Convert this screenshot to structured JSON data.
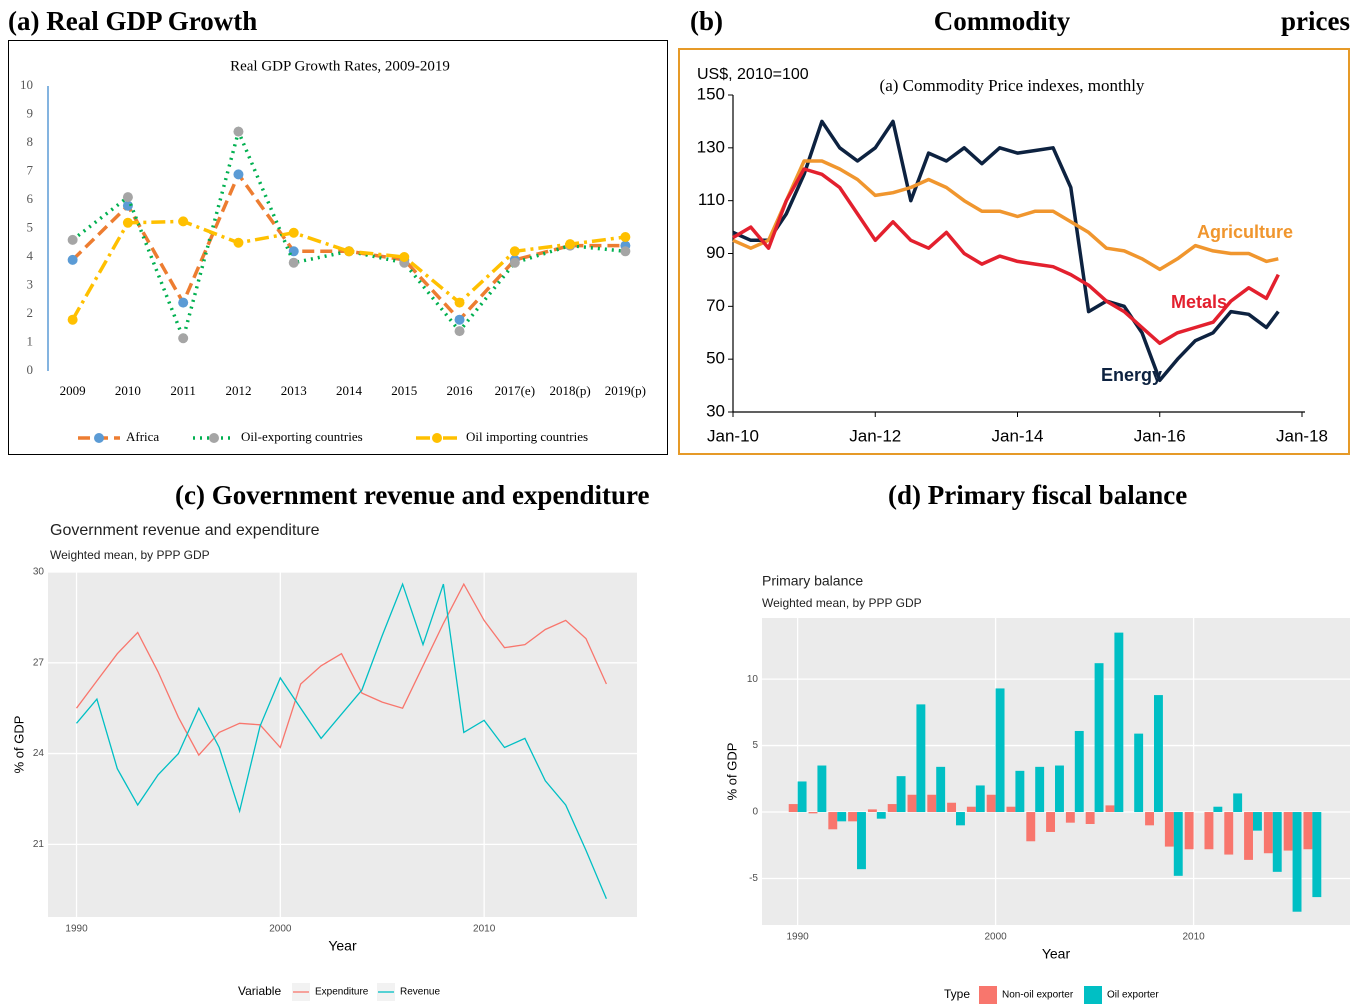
{
  "headings": [
    "(a) Real GDP Growth",
    "(b) Commodity prices",
    "(c) Government revenue and expenditure",
    "(d) Primary fiscal balance"
  ],
  "chart_data": [
    {
      "type": "line",
      "title": "Real GDP Growth Rates, 2009-2019",
      "categories": [
        "2009",
        "2010",
        "2011",
        "2012",
        "2013",
        "2014",
        "2015",
        "2016",
        "2017(e)",
        "2018(p)",
        "2019(p)"
      ],
      "ylim": [
        0,
        10
      ],
      "yticks": [
        0,
        1,
        2,
        3,
        4,
        5,
        6,
        7,
        8,
        9,
        10
      ],
      "grid": false,
      "legend": "bottom",
      "series": [
        {
          "name": "Africa",
          "color": "#ed7d31",
          "marker_color": "#5b9bd5",
          "line_style": "dashed",
          "values": [
            3.9,
            5.8,
            2.4,
            6.9,
            4.2,
            4.2,
            3.9,
            1.8,
            3.9,
            4.4,
            4.4
          ]
        },
        {
          "name": "Oil-exporting countries",
          "color": "#00b050",
          "marker_color": "#a5a5a5",
          "line_style": "dotted",
          "values": [
            4.6,
            6.1,
            1.15,
            8.4,
            3.8,
            4.2,
            3.8,
            1.4,
            3.8,
            4.4,
            4.2
          ]
        },
        {
          "name": "Oil importing countries",
          "color": "#ffc000",
          "marker_color": "#ffc000",
          "line_style": "dashdot",
          "values": [
            1.8,
            5.2,
            5.25,
            4.5,
            4.85,
            4.2,
            4.0,
            2.4,
            4.2,
            4.45,
            4.7
          ]
        }
      ]
    },
    {
      "type": "line",
      "title": "(a) Commodity Price indexes, monthly",
      "y_label": "US$, 2010=100",
      "x": [
        "2010-01",
        "2010-04",
        "2010-07",
        "2010-10",
        "2011-01",
        "2011-04",
        "2011-07",
        "2011-10",
        "2012-01",
        "2012-04",
        "2012-07",
        "2012-10",
        "2013-01",
        "2013-04",
        "2013-07",
        "2013-10",
        "2014-01",
        "2014-04",
        "2014-07",
        "2014-10",
        "2015-01",
        "2015-04",
        "2015-07",
        "2015-10",
        "2016-01",
        "2016-04",
        "2016-07",
        "2016-10",
        "2017-01",
        "2017-04",
        "2017-07",
        "2017-09"
      ],
      "xlim": [
        "2010-01",
        "2018-01"
      ],
      "xticks": [
        {
          "value": "2010-01",
          "label": "Jan-10"
        },
        {
          "value": "2012-01",
          "label": "Jan-12"
        },
        {
          "value": "2014-01",
          "label": "Jan-14"
        },
        {
          "value": "2016-01",
          "label": "Jan-16"
        },
        {
          "value": "2018-01",
          "label": "Jan-18"
        }
      ],
      "ylim": [
        30,
        150
      ],
      "yticks": [
        30,
        50,
        70,
        90,
        110,
        130,
        150
      ],
      "grid": false,
      "series": [
        {
          "name": "Energy",
          "color": "#0d2240",
          "values": [
            98,
            95,
            95,
            105,
            120,
            140,
            130,
            125,
            130,
            140,
            110,
            128,
            125,
            130,
            124,
            130,
            128,
            129,
            130,
            115,
            68,
            72,
            70,
            60,
            42,
            50,
            57,
            60,
            68,
            67,
            62,
            68
          ]
        },
        {
          "name": "Agriculture",
          "color": "#f0962e",
          "values": [
            95,
            92,
            95,
            110,
            125,
            125,
            122,
            118,
            112,
            113,
            115,
            118,
            115,
            110,
            106,
            106,
            104,
            106,
            106,
            102,
            98,
            92,
            91,
            88,
            84,
            88,
            93,
            91,
            90,
            90,
            87,
            88
          ]
        },
        {
          "name": "Metals",
          "color": "#e3202e",
          "values": [
            96,
            100,
            92,
            110,
            122,
            120,
            115,
            105,
            95,
            102,
            95,
            92,
            98,
            90,
            86,
            89,
            87,
            86,
            85,
            82,
            78,
            72,
            68,
            62,
            56,
            60,
            62,
            64,
            72,
            77,
            73,
            82
          ]
        }
      ]
    },
    {
      "type": "line",
      "title": "Government revenue and expenditure",
      "subtitle": "Weighted mean, by PPP GDP",
      "x_label": "Year",
      "y_label": "% of GDP",
      "legend_title": "Variable",
      "legend": "bottom",
      "x": [
        1990,
        1991,
        1992,
        1993,
        1994,
        1995,
        1996,
        1997,
        1998,
        1999,
        2000,
        2001,
        2002,
        2003,
        2004,
        2005,
        2006,
        2007,
        2008,
        2009,
        2010,
        2011,
        2012,
        2013,
        2014,
        2015,
        2016
      ],
      "xlim": [
        1988.6,
        2017.5
      ],
      "xticks": [
        1990,
        2000,
        2010
      ],
      "ylim": [
        18.6,
        30.0
      ],
      "yticks": [
        21,
        24,
        27,
        30
      ],
      "grid": true,
      "series": [
        {
          "name": "Expenditure",
          "color": "#f8766d",
          "values": [
            25.5,
            26.4,
            27.3,
            28.0,
            26.7,
            25.2,
            23.95,
            24.7,
            25.0,
            24.95,
            24.2,
            26.3,
            26.9,
            27.3,
            26.0,
            25.7,
            25.5,
            26.9,
            28.3,
            29.6,
            28.4,
            27.5,
            27.6,
            28.1,
            28.4,
            27.8,
            26.3
          ]
        },
        {
          "name": "Revenue",
          "color": "#00bfc4",
          "values": [
            25.0,
            25.8,
            23.5,
            22.3,
            23.3,
            24.0,
            25.5,
            24.2,
            22.1,
            24.9,
            26.5,
            25.5,
            24.5,
            25.3,
            26.1,
            27.9,
            29.6,
            27.6,
            29.6,
            24.7,
            25.1,
            24.2,
            24.5,
            23.1,
            22.3,
            20.8,
            19.2
          ]
        }
      ]
    },
    {
      "type": "bar",
      "title": "Primary balance",
      "subtitle": "Weighted mean, by PPP GDP",
      "x_label": "Year",
      "y_label": "% of GDP",
      "legend_title": "Type",
      "legend": "bottom",
      "x": [
        1990,
        1991,
        1992,
        1993,
        1994,
        1995,
        1996,
        1997,
        1998,
        1999,
        2000,
        2001,
        2002,
        2003,
        2004,
        2005,
        2006,
        2007,
        2008,
        2009,
        2010,
        2011,
        2012,
        2013,
        2014,
        2015,
        2016
      ],
      "xlim": [
        1988.2,
        2017.9
      ],
      "xticks": [
        1990,
        2000,
        2010
      ],
      "ylim": [
        -8.5,
        14.6
      ],
      "yticks": [
        -5,
        0,
        5,
        10
      ],
      "grid": true,
      "series": [
        {
          "name": "Non-oil exporter",
          "color": "#f8766d",
          "values": [
            0.6,
            -0.1,
            -1.3,
            -0.7,
            0.2,
            0.6,
            1.3,
            1.3,
            0.7,
            0.4,
            1.3,
            0.4,
            -2.2,
            -1.5,
            -0.8,
            -0.9,
            0.5,
            0,
            -1.0,
            -2.6,
            -2.8,
            -2.8,
            -3.2,
            -3.6,
            -3.1,
            -2.9,
            -2.8
          ]
        },
        {
          "name": "Oil exporter",
          "color": "#00bfc4",
          "values": [
            2.3,
            3.5,
            -0.7,
            -4.3,
            -0.5,
            2.7,
            8.1,
            3.4,
            -1.0,
            2.0,
            9.3,
            3.1,
            3.4,
            3.5,
            6.1,
            11.2,
            13.5,
            5.9,
            8.8,
            -4.8,
            0,
            0.4,
            1.4,
            -1.4,
            -4.5,
            -7.5,
            -6.4
          ]
        }
      ]
    }
  ]
}
